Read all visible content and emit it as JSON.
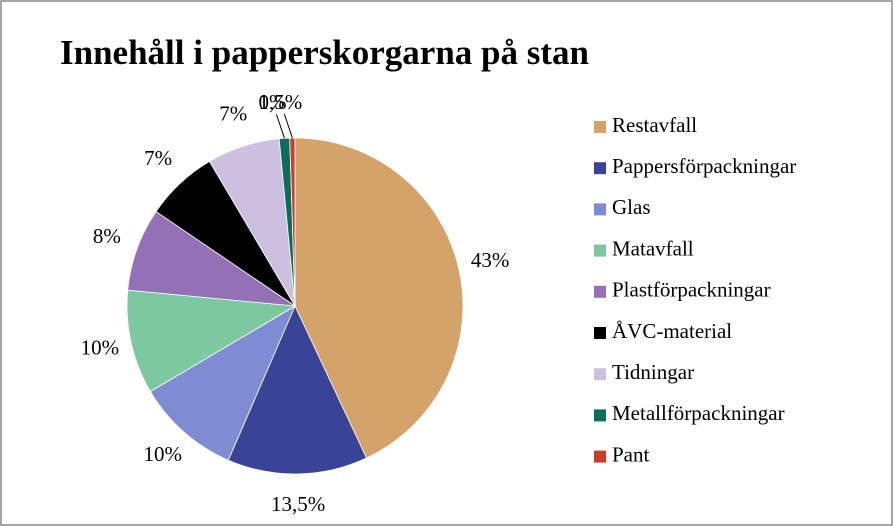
{
  "chart_data": {
    "type": "pie",
    "title": "Innehåll i papperskorgarna på stan",
    "categories": [
      "Restavfall",
      "Pappersförpackningar",
      "Glas",
      "Matavfall",
      "Plastförpackningar",
      "ÅVC-material",
      "Tidningar",
      "Metallförpackningar",
      "Pant"
    ],
    "values": [
      43,
      13.5,
      10,
      10,
      8,
      7,
      7,
      1,
      0.5
    ],
    "value_labels": [
      "43%",
      "13,5%",
      "10%",
      "10%",
      "8%",
      "7%",
      "7%",
      "1%",
      "0,5%"
    ],
    "colors": [
      "#d4a36a",
      "#3a4496",
      "#7f8cd1",
      "#7cc9a0",
      "#9470b6",
      "#000000",
      "#cdbfdf",
      "#0b6e5c",
      "#c9402a"
    ],
    "legend": "right"
  }
}
